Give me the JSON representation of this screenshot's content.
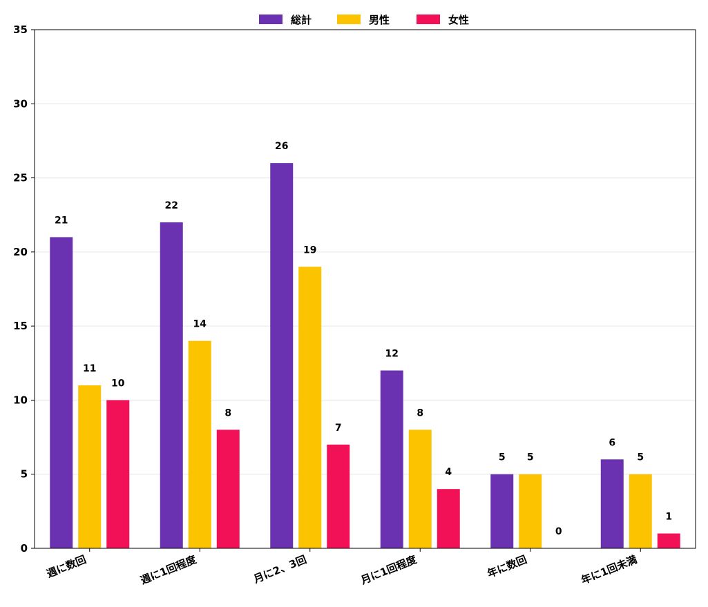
{
  "chart_data": {
    "type": "bar",
    "categories": [
      "週に数回",
      "週に1回程度",
      "月に2、3回",
      "月に1回程度",
      "年に数回",
      "年に1回未満"
    ],
    "series": [
      {
        "name": "総計",
        "color": "#6a32b0",
        "values": [
          21,
          22,
          26,
          12,
          5,
          6
        ]
      },
      {
        "name": "男性",
        "color": "#fbc300",
        "values": [
          11,
          14,
          19,
          8,
          5,
          5
        ]
      },
      {
        "name": "女性",
        "color": "#f21156",
        "values": [
          10,
          8,
          7,
          4,
          0,
          1
        ]
      }
    ],
    "title": "",
    "xlabel": "",
    "ylabel": "",
    "ylim": [
      0,
      35
    ],
    "yticks": [
      0,
      5,
      10,
      15,
      20,
      25,
      30,
      35
    ],
    "grid": "horizontal",
    "legend_position": "top-center",
    "data_labels": true
  }
}
